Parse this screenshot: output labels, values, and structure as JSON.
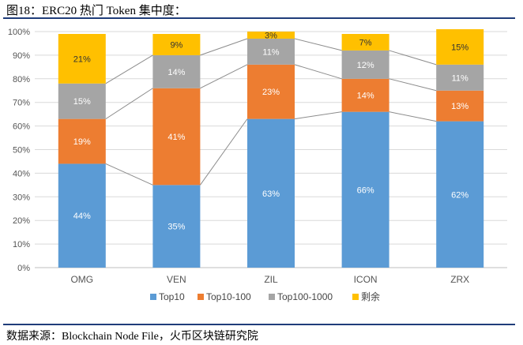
{
  "title": "图18：ERC20 热门 Token 集中度：",
  "source": "数据来源：Blockchain Node File，火币区块链研究院",
  "chart_data": {
    "type": "bar",
    "stacked": true,
    "categories": [
      "OMG",
      "VEN",
      "ZIL",
      "ICON",
      "ZRX"
    ],
    "ylim": [
      0,
      100
    ],
    "yticks": [
      "0%",
      "10%",
      "20%",
      "30%",
      "40%",
      "50%",
      "60%",
      "70%",
      "80%",
      "90%",
      "100%"
    ],
    "legend_position": "bottom",
    "series": [
      {
        "name": "Top10",
        "color": "#5b9bd5",
        "values": [
          44,
          35,
          63,
          66,
          62
        ],
        "labels": [
          "44%",
          "35%",
          "63%",
          "66%",
          "62%"
        ]
      },
      {
        "name": "Top10-100",
        "color": "#ed7d31",
        "values": [
          19,
          41,
          23,
          14,
          13
        ],
        "labels": [
          "19%",
          "41%",
          "23%",
          "14%",
          "13%"
        ]
      },
      {
        "name": "Top100-1000",
        "color": "#a5a5a5",
        "values": [
          15,
          14,
          11,
          12,
          11
        ],
        "labels": [
          "15%",
          "14%",
          "11%",
          "12%",
          "11%"
        ]
      },
      {
        "name": "剩余",
        "color": "#ffc000",
        "values": [
          21,
          9,
          3,
          7,
          15
        ],
        "labels": [
          "21%",
          "9%",
          "3%",
          "7%",
          "15%"
        ]
      }
    ]
  }
}
